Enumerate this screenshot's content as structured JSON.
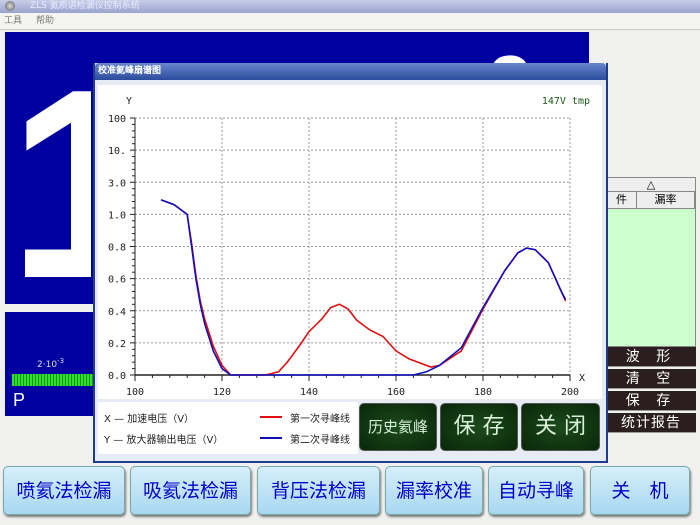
{
  "window": {
    "title": "ZLS 氦质谱检漏仪控制系统",
    "menu": [
      "工具",
      "帮助"
    ]
  },
  "display": {
    "digit_left": "1",
    "digit_right": "0",
    "scale_label": "2·10",
    "scale_exp": "-3",
    "pressure_label": "P"
  },
  "right_panel": {
    "sort_indicator": "△",
    "columns": [
      "件",
      "漏率"
    ],
    "buttons": [
      "波 形",
      "清 空",
      "保 存",
      "统计报告"
    ]
  },
  "dialog": {
    "title": "校准氦峰扇谱图",
    "buttons": {
      "history": "历史氦峰",
      "save": "保 存",
      "close": "关 闭"
    },
    "legend": {
      "x_desc": "X — 加速电压（V）",
      "y_desc": "Y — 放大器输出电压（V）",
      "series1": "第一次寻峰线",
      "series2": "第二次寻峰线"
    }
  },
  "bottom_buttons": [
    "喷氦法检漏",
    "吸氦法检漏",
    "背压法检漏",
    "漏率校准",
    "自动寻峰",
    "关　机"
  ],
  "chart_data": {
    "type": "line",
    "annotation": "147V tmp",
    "xlabel": "X",
    "ylabel": "Y",
    "xlim": [
      100,
      200
    ],
    "x_ticks": [
      "100",
      "120",
      "140",
      "160",
      "180",
      "200"
    ],
    "y_ticks": [
      "0.0",
      "0.2",
      "0.4",
      "0.6",
      "0.8",
      "1.0",
      "3.0",
      "10.",
      "100"
    ],
    "grid": true,
    "legend_position": "bottom-left",
    "series": [
      {
        "name": "第一次寻峰线",
        "color": "#e01010",
        "x": [
          106,
          109,
          112,
          113,
          114,
          115,
          116,
          118,
          120,
          122,
          130,
          133,
          135,
          138,
          140,
          143,
          145,
          147,
          149,
          151,
          154,
          157,
          160,
          163,
          166,
          168,
          170,
          175,
          180,
          185,
          188,
          190,
          192,
          195,
          198,
          199
        ],
        "y": [
          1.9,
          1.6,
          1.0,
          0.82,
          0.62,
          0.46,
          0.35,
          0.18,
          0.06,
          0.0,
          0.0,
          0.02,
          0.08,
          0.19,
          0.27,
          0.35,
          0.42,
          0.44,
          0.41,
          0.34,
          0.28,
          0.24,
          0.15,
          0.1,
          0.07,
          0.05,
          0.06,
          0.15,
          0.41,
          0.65,
          0.76,
          0.79,
          0.78,
          0.7,
          0.52,
          0.46
        ]
      },
      {
        "name": "第二次寻峰线",
        "color": "#1010c0",
        "x": [
          106,
          109,
          112,
          113,
          114,
          115,
          116,
          118,
          120,
          122,
          130,
          140,
          150,
          160,
          164,
          167,
          170,
          175,
          180,
          185,
          188,
          190,
          192,
          195,
          198,
          199
        ],
        "y": [
          1.9,
          1.6,
          1.0,
          0.8,
          0.6,
          0.44,
          0.32,
          0.15,
          0.04,
          0.0,
          0.0,
          0.0,
          0.0,
          0.0,
          0.0,
          0.02,
          0.06,
          0.17,
          0.42,
          0.65,
          0.76,
          0.79,
          0.78,
          0.7,
          0.52,
          0.47
        ]
      }
    ]
  }
}
